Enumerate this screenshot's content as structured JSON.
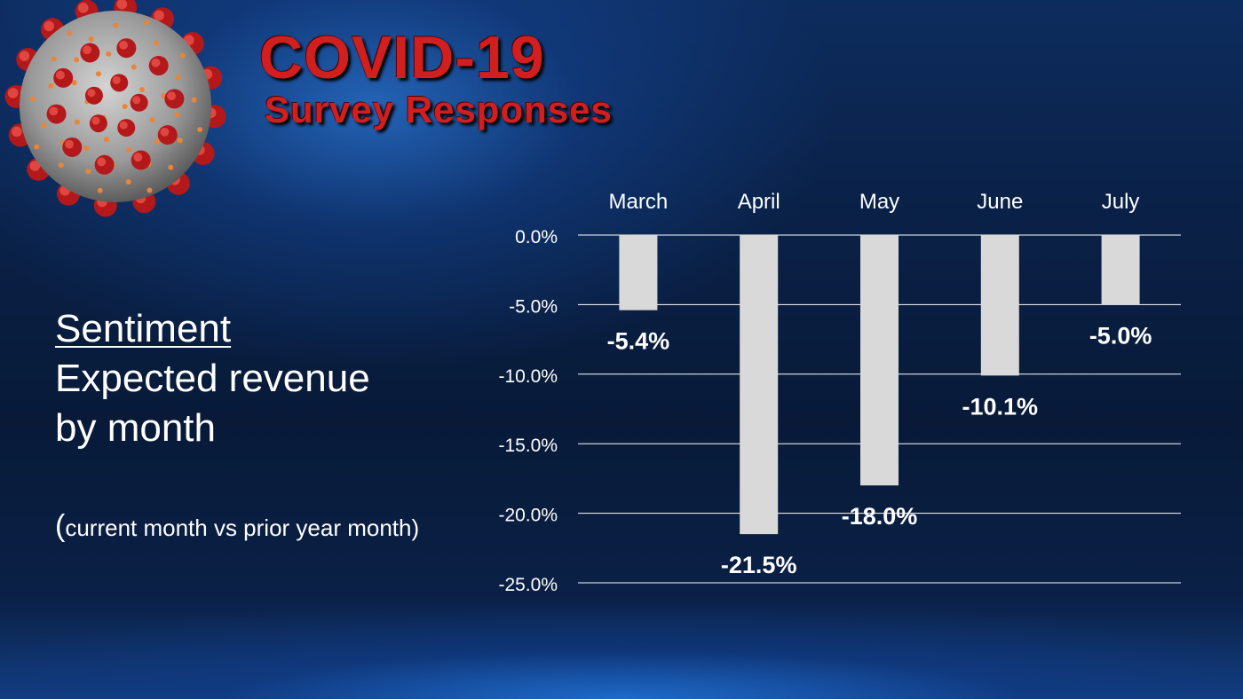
{
  "header": {
    "title": "COVID-19",
    "subtitle": "Survey Responses"
  },
  "sidebar": {
    "heading": "Sentiment",
    "line1": "Expected revenue",
    "line2": "by month",
    "note_open": "(",
    "note_rest": "current month vs prior year month)"
  },
  "colors": {
    "title_red": "#d11f1f",
    "bar_fill": "#d9d9d9",
    "gridline": "#ffffff",
    "text": "#ffffff"
  },
  "decor": {
    "image": "coronavirus-illustration"
  },
  "chart_data": {
    "type": "bar",
    "categories": [
      "March",
      "April",
      "May",
      "June",
      "July"
    ],
    "values": [
      -5.4,
      -21.5,
      -18.0,
      -10.1,
      -5.0
    ],
    "data_labels": [
      "-5.4%",
      "-21.5%",
      "-18.0%",
      "-10.1%",
      "-5.0%"
    ],
    "y_ticks": [
      0,
      -5,
      -10,
      -15,
      -20,
      -25
    ],
    "y_tick_labels": [
      "0.0%",
      "-5.0%",
      "-10.0%",
      "-15.0%",
      "-20.0%",
      "-25.0%"
    ],
    "ylim": [
      -25,
      0
    ],
    "category_axis_position": "top",
    "grid": true,
    "legend": "none"
  }
}
